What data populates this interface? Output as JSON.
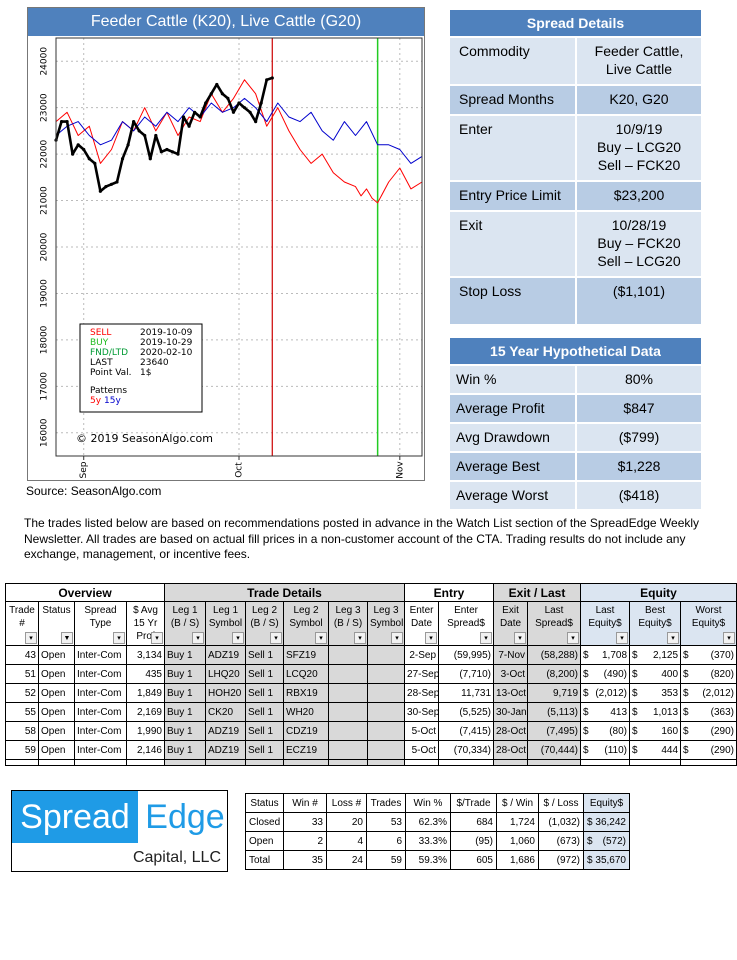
{
  "chart": {
    "title": "Feeder Cattle (K20), Live Cattle (G20)",
    "source": "Source: SeasonAlgo.com",
    "copyright": "© 2019 SeasonAlgo.com",
    "legend": {
      "sell_label": "SELL",
      "sell_value": "2019-10-09",
      "buy_label": "BUY",
      "buy_value": "2019-10-29",
      "fnd_label": "FND/LTD",
      "fnd_value": "2020-02-10",
      "last_label": "LAST",
      "last_value": "23640",
      "point_label": "Point Val.",
      "point_value": "1$",
      "patterns_label": "Patterns",
      "p5y": "5y",
      "p15y": "15y"
    },
    "colors": {
      "current": "#000000",
      "pattern5y": "#ff0000",
      "pattern15y": "#0000cc",
      "sell": "#cc0000",
      "buy": "#22cc22"
    }
  },
  "chart_data": {
    "type": "line",
    "x_ticks": [
      "Sep",
      "Oct",
      "Nov"
    ],
    "y_ticks": [
      16000,
      17000,
      18000,
      19000,
      20000,
      21000,
      22000,
      23000,
      24000
    ],
    "ylim": [
      15500,
      24500
    ],
    "x_range": [
      0,
      66
    ],
    "markers": {
      "sell_x": 39,
      "buy_x": 58
    },
    "series": [
      {
        "name": "5y",
        "color": "#ff0000",
        "x": [
          0,
          2,
          4,
          6,
          8,
          10,
          12,
          14,
          16,
          18,
          20,
          22,
          24,
          26,
          28,
          30,
          32,
          34,
          36,
          38,
          40,
          42,
          44,
          46,
          48,
          50,
          52,
          54,
          55,
          56,
          57,
          58,
          60,
          62,
          64,
          66
        ],
        "values": [
          22700,
          22900,
          22400,
          22600,
          21800,
          22100,
          22700,
          22500,
          23000,
          22500,
          22900,
          22400,
          22800,
          22700,
          23300,
          22900,
          23200,
          23600,
          23300,
          22600,
          23000,
          22500,
          22100,
          21800,
          22000,
          21600,
          21400,
          21300,
          21100,
          21250,
          21050,
          20950,
          21400,
          21700,
          21250,
          21400
        ]
      },
      {
        "name": "15y",
        "color": "#0000cc",
        "x": [
          0,
          2,
          4,
          6,
          8,
          10,
          12,
          14,
          16,
          18,
          20,
          22,
          24,
          26,
          28,
          30,
          32,
          34,
          36,
          38,
          40,
          42,
          44,
          46,
          48,
          50,
          52,
          54,
          56,
          58,
          60,
          62,
          64,
          66
        ],
        "values": [
          22400,
          22600,
          22700,
          22400,
          22200,
          22300,
          22700,
          22500,
          22800,
          22600,
          22900,
          22700,
          23000,
          22800,
          23100,
          22900,
          23000,
          23200,
          23000,
          22700,
          23100,
          22800,
          22700,
          22900,
          22500,
          22300,
          22700,
          22400,
          22700,
          22200,
          22200,
          22100,
          21800,
          21950
        ]
      },
      {
        "name": "",
        "color": "#000000",
        "x": [
          0,
          1,
          2,
          3,
          4,
          5,
          6,
          7,
          8,
          9,
          10,
          11,
          12,
          13,
          14,
          15,
          16,
          17,
          18,
          19,
          20,
          21,
          22,
          23,
          24,
          25,
          26,
          27,
          28,
          29,
          30,
          31,
          32,
          33,
          34,
          35,
          36,
          37,
          38,
          39
        ],
        "values": [
          22300,
          22700,
          22700,
          22000,
          22200,
          22100,
          21900,
          21800,
          21200,
          21300,
          21350,
          21400,
          21900,
          22200,
          22700,
          22500,
          22400,
          21900,
          22400,
          22050,
          22100,
          22050,
          22000,
          22800,
          22600,
          22900,
          22800,
          23100,
          23300,
          23500,
          23300,
          23200,
          22900,
          23100,
          23000,
          22900,
          22700,
          23100,
          23600,
          23640
        ]
      }
    ]
  },
  "spread_details": {
    "header": "Spread Details",
    "rows": [
      {
        "label": "Commodity",
        "value": [
          "Feeder Cattle,",
          "Live Cattle"
        ]
      },
      {
        "label": "Spread Months",
        "value": [
          "K20, G20"
        ]
      },
      {
        "label": "Enter",
        "value": [
          "10/9/19",
          "Buy – LCG20",
          "Sell – FCK20"
        ]
      },
      {
        "label": "Entry Price Limit",
        "value": [
          "$23,200"
        ]
      },
      {
        "label": "Exit",
        "value": [
          "10/28/19",
          "Buy – FCK20",
          "Sell – LCG20"
        ]
      },
      {
        "label": "Stop Loss",
        "value": [
          "($1,101)",
          ""
        ]
      }
    ]
  },
  "hypothetical": {
    "header": "15 Year Hypothetical Data",
    "rows": [
      {
        "label": "Win %",
        "value": "80%"
      },
      {
        "label": "Average Profit",
        "value": "$847"
      },
      {
        "label": "Avg Drawdown",
        "value": "($799)"
      },
      {
        "label": "Average Best",
        "value": "$1,228"
      },
      {
        "label": "Average Worst",
        "value": "($418)"
      }
    ]
  },
  "disclaimer": "The trades listed below are based on recommendations posted in advance in the Watch List section of the SpreadEdge Weekly Newsletter.  All trades are based on actual fill prices in a non-customer  account of the CTA.  Trading results do not include  any exchange, management, or incentive fees.",
  "trades": {
    "groups": {
      "overview": "Overview",
      "trade_details": "Trade Details",
      "entry": "Entry",
      "exit": "Exit  / Last",
      "equity": "Equity"
    },
    "headers": [
      [
        "Trade",
        "#"
      ],
      [
        "Status",
        ""
      ],
      [
        "Spread",
        "Type"
      ],
      [
        "$ Avg",
        "15 Yr",
        "Prof"
      ],
      [
        "Leg 1",
        "(B / S)"
      ],
      [
        "Leg 1",
        "Symbol"
      ],
      [
        "Leg 2",
        "(B / S)"
      ],
      [
        "Leg 2",
        "Symbol"
      ],
      [
        "Leg 3",
        "(B / S)"
      ],
      [
        "Leg 3",
        "Symbol"
      ],
      [
        "Enter",
        "Date"
      ],
      [
        "Enter",
        "Spread$"
      ],
      [
        "Exit",
        "Date"
      ],
      [
        "Last",
        "Spread$"
      ],
      [
        "Last",
        "Equity$"
      ],
      [
        "Best",
        "Equity$"
      ],
      [
        "Worst",
        "Equity$"
      ]
    ],
    "rows": [
      {
        "trade": "43",
        "status": "Open",
        "type": "Inter-Com",
        "avg": "3,134",
        "leg1bs": "Buy 1",
        "leg1sym": "ADZ19",
        "leg2bs": "Sell 1",
        "leg2sym": "SFZ19",
        "enter_date": "2-Sep",
        "enter_spread": "(59,995)",
        "exit_date": "7-Nov",
        "last_spread": "(58,288)",
        "last_eq": "1,708",
        "best_eq": "2,125",
        "worst_eq": "(370)"
      },
      {
        "trade": "51",
        "status": "Open",
        "type": "Inter-Com",
        "avg": "435",
        "leg1bs": "Buy 1",
        "leg1sym": "LHQ20",
        "leg2bs": "Sell 1",
        "leg2sym": "LCQ20",
        "enter_date": "27-Sep",
        "enter_spread": "(7,710)",
        "exit_date": "3-Oct",
        "last_spread": "(8,200)",
        "last_eq": "(490)",
        "best_eq": "400",
        "worst_eq": "(820)"
      },
      {
        "trade": "52",
        "status": "Open",
        "type": "Inter-Com",
        "avg": "1,849",
        "leg1bs": "Buy 1",
        "leg1sym": "HOH20",
        "leg2bs": "Sell 1",
        "leg2sym": "RBX19",
        "enter_date": "28-Sep",
        "enter_spread": "11,731",
        "exit_date": "13-Oct",
        "last_spread": "9,719",
        "last_eq": "(2,012)",
        "best_eq": "353",
        "worst_eq": "(2,012)"
      },
      {
        "trade": "55",
        "status": "Open",
        "type": "Inter-Com",
        "avg": "2,169",
        "leg1bs": "Buy 1",
        "leg1sym": "CK20",
        "leg2bs": "Sell 1",
        "leg2sym": "WH20",
        "enter_date": "30-Sep",
        "enter_spread": "(5,525)",
        "exit_date": "30-Jan",
        "last_spread": "(5,113)",
        "last_eq": "413",
        "best_eq": "1,013",
        "worst_eq": "(363)"
      },
      {
        "trade": "58",
        "status": "Open",
        "type": "Inter-Com",
        "avg": "1,990",
        "leg1bs": "Buy 1",
        "leg1sym": "ADZ19",
        "leg2bs": "Sell 1",
        "leg2sym": "CDZ19",
        "enter_date": "5-Oct",
        "enter_spread": "(7,415)",
        "exit_date": "28-Oct",
        "last_spread": "(7,495)",
        "last_eq": "(80)",
        "best_eq": "160",
        "worst_eq": "(290)"
      },
      {
        "trade": "59",
        "status": "Open",
        "type": "Inter-Com",
        "avg": "2,146",
        "leg1bs": "Buy 1",
        "leg1sym": "ADZ19",
        "leg2bs": "Sell 1",
        "leg2sym": "ECZ19",
        "enter_date": "5-Oct",
        "enter_spread": "(70,334)",
        "exit_date": "28-Oct",
        "last_spread": "(70,444)",
        "last_eq": "(110)",
        "best_eq": "444",
        "worst_eq": "(290)"
      }
    ],
    "currency": "$"
  },
  "logo": {
    "spread": "Spread",
    "edge": "Edge",
    "capital": "Capital, LLC"
  },
  "summary": {
    "headers": [
      "Status",
      "Win #",
      "Loss #",
      "Trades",
      "Win %",
      "$/Trade",
      "$ / Win",
      "$ / Loss",
      "Equity$"
    ],
    "rows": [
      {
        "status": "Closed",
        "win": "33",
        "loss": "20",
        "trades": "53",
        "winpct": "62.3%",
        "per_trade": "684",
        "per_win": "1,724",
        "per_loss": "(1,032)",
        "equity": "36,242"
      },
      {
        "status": "Open",
        "win": "2",
        "loss": "4",
        "trades": "6",
        "winpct": "33.3%",
        "per_trade": "(95)",
        "per_win": "1,060",
        "per_loss": "(673)",
        "equity": "(572)"
      },
      {
        "status": "Total",
        "win": "35",
        "loss": "24",
        "trades": "59",
        "winpct": "59.3%",
        "per_trade": "605",
        "per_win": "1,686",
        "per_loss": "(972)",
        "equity": "35,670"
      }
    ]
  }
}
